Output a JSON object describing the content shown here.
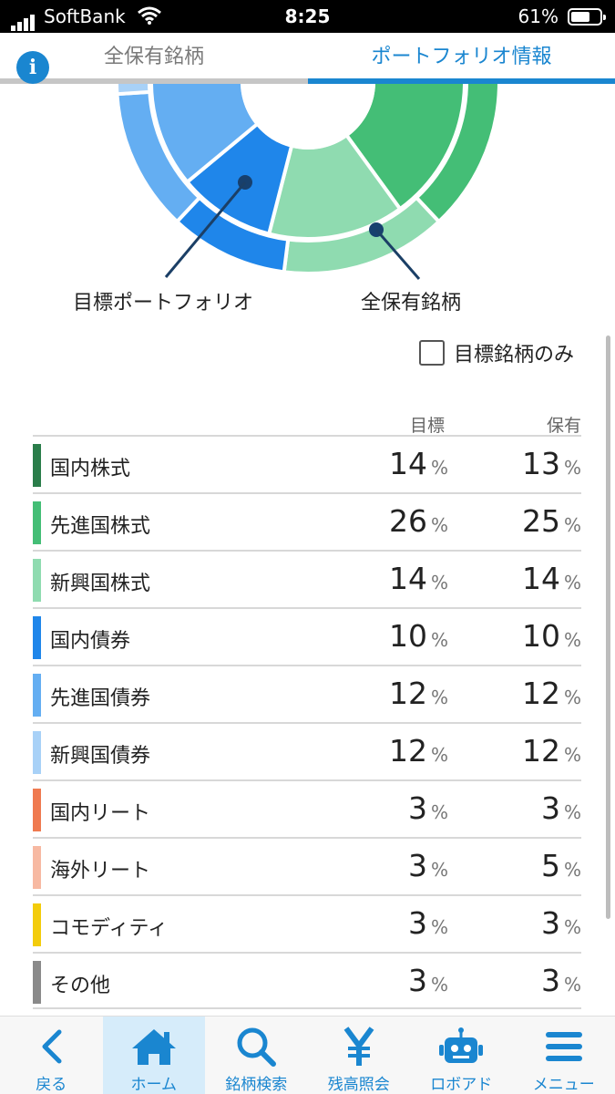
{
  "status_bar": {
    "carrier": "SoftBank",
    "time": "8:25",
    "battery": "61%"
  },
  "tabs": {
    "left": "全保有銘柄",
    "right": "ポートフォリオ情報",
    "active": "right"
  },
  "chart": {
    "inner_label": "目標ポートフォリオ",
    "outer_label": "全保有銘柄"
  },
  "filter": {
    "label": "目標銘柄のみ",
    "checked": false
  },
  "table": {
    "headers": {
      "target": "目標",
      "holding": "保有"
    },
    "unit": "%",
    "rows": [
      {
        "label": "国内株式",
        "target": 14,
        "holding": 13,
        "color": "#2a7d4a"
      },
      {
        "label": "先進国株式",
        "target": 26,
        "holding": 25,
        "color": "#44be76"
      },
      {
        "label": "新興国株式",
        "target": 14,
        "holding": 14,
        "color": "#8fdbb0"
      },
      {
        "label": "国内債券",
        "target": 10,
        "holding": 10,
        "color": "#1f86ea"
      },
      {
        "label": "先進国債券",
        "target": 12,
        "holding": 12,
        "color": "#64aef2"
      },
      {
        "label": "新興国債券",
        "target": 12,
        "holding": 12,
        "color": "#a8d1f7"
      },
      {
        "label": "国内リート",
        "target": 3,
        "holding": 3,
        "color": "#ef7a50"
      },
      {
        "label": "海外リート",
        "target": 3,
        "holding": 5,
        "color": "#f7b9a2"
      },
      {
        "label": "コモディティ",
        "target": 3,
        "holding": 3,
        "color": "#f3cc0b"
      },
      {
        "label": "その他",
        "target": 3,
        "holding": 3,
        "color": "#8a8a8a"
      }
    ]
  },
  "nav": {
    "items": [
      {
        "label": "戻る",
        "icon": "back-chevron-icon"
      },
      {
        "label": "ホーム",
        "icon": "home-icon",
        "active": true
      },
      {
        "label": "銘柄検索",
        "icon": "search-icon"
      },
      {
        "label": "残高照会",
        "icon": "yen-icon"
      },
      {
        "label": "ロボアド",
        "icon": "robot-icon"
      },
      {
        "label": "メニュー",
        "icon": "menu-icon"
      }
    ]
  },
  "colors": {
    "accent": "#1a86d0"
  }
}
